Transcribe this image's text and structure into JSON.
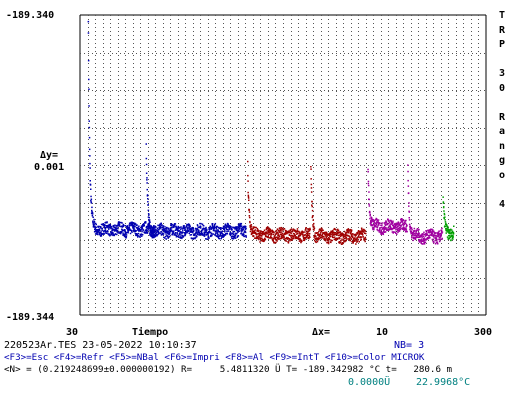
{
  "plot": {
    "y_top_label": "-189.340",
    "y_bottom_label": "-189.344",
    "dy_label": "Δy=",
    "dy_value": "0.001",
    "x_min_label": "30",
    "x_label": "Tiempo",
    "dx_label": "Δx=",
    "dx_value": "10",
    "x_max_label": "300"
  },
  "side_panel": {
    "chars": [
      "T",
      "R",
      "P",
      "",
      "3",
      "0",
      "",
      "R",
      "a",
      "n",
      "g",
      "o",
      "",
      "4"
    ]
  },
  "status": {
    "file_datetime": "220523Ar.TES 23-05-2022 10:10:37",
    "nb_label": "NB= 3",
    "fkeys": "<F3>=Esc <F4>=Refr <F5>=NBal <F6>=Impri <F8>=Al <F9>=IntT <F10>=Color MICROK",
    "measure": "<N> = (0.219248699±0.000000192) R=     5.4811320 Ü T= -189.342982 °C t=   280.6 m",
    "extra_left": "0.0000Ü",
    "extra_right": "22.9968°C"
  },
  "chart_data": {
    "type": "scatter",
    "title": "",
    "xlabel": "Tiempo",
    "ylabel": "",
    "xlim": [
      30,
      300
    ],
    "ylim": [
      -189.344,
      -189.34
    ],
    "grid": true,
    "series": [
      {
        "color": "#0000b0",
        "x": [
          35.5,
          80.0
        ],
        "y_spike": -189.34,
        "y_base": -189.34286
      },
      {
        "color": "#0000b0",
        "x": [
          74.0,
          140.5
        ],
        "y_spike": -189.3418,
        "y_base": -189.34288
      },
      {
        "color": "#a00000",
        "x": [
          141.5,
          183.0
        ],
        "y_spike": -189.342,
        "y_base": -189.34293
      },
      {
        "color": "#a00000",
        "x": [
          183.5,
          220.0
        ],
        "y_spike": -189.342,
        "y_base": -189.34295
      },
      {
        "color": "#a000a0",
        "x": [
          221.5,
          247.5
        ],
        "y_spike": -189.342,
        "y_base": -189.34282
      },
      {
        "color": "#a000a0",
        "x": [
          248.0,
          271.0
        ],
        "y_spike": -189.342,
        "y_base": -189.34295
      },
      {
        "color": "#00a000",
        "x": [
          271.5,
          278.5
        ],
        "y_spike": -189.3425,
        "y_base": -189.3429
      }
    ]
  }
}
